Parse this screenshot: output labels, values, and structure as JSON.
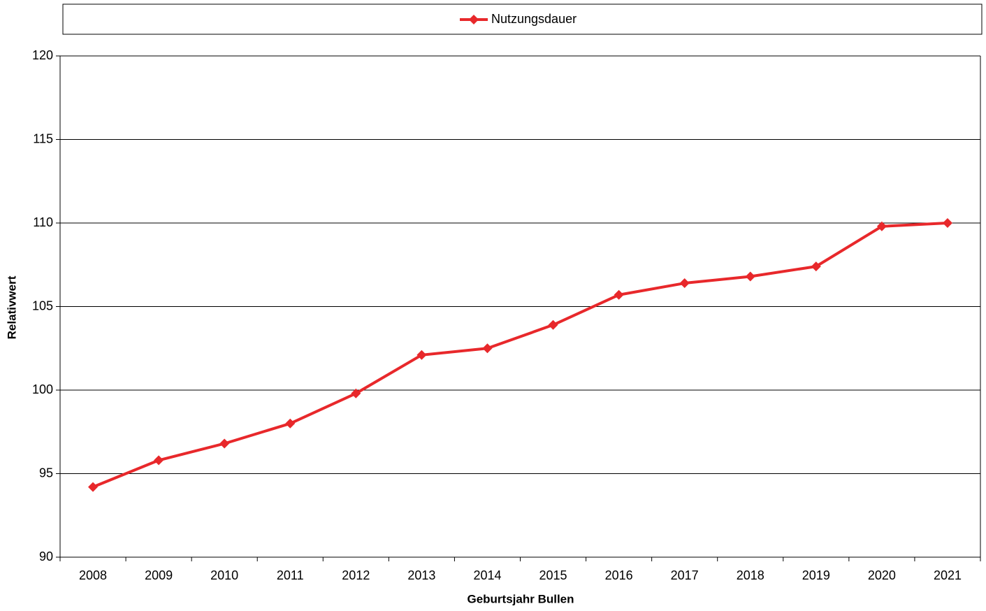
{
  "chart_data": {
    "type": "line",
    "x_label": "Geburtsjahr Bullen",
    "y_label": "Relativwert",
    "categories": [
      "2008",
      "2009",
      "2010",
      "2011",
      "2012",
      "2013",
      "2014",
      "2015",
      "2016",
      "2017",
      "2018",
      "2019",
      "2020",
      "2021"
    ],
    "series": [
      {
        "name": "Nutzungsdauer",
        "color": "#e8282b",
        "values": [
          94.2,
          95.8,
          96.8,
          98.0,
          99.8,
          102.1,
          102.5,
          103.9,
          105.7,
          106.4,
          106.8,
          107.4,
          109.8,
          110.0
        ]
      }
    ],
    "ylim": [
      90,
      120
    ],
    "yticks": [
      90,
      95,
      100,
      105,
      110,
      115,
      120
    ],
    "grid": true,
    "legend": "top"
  }
}
